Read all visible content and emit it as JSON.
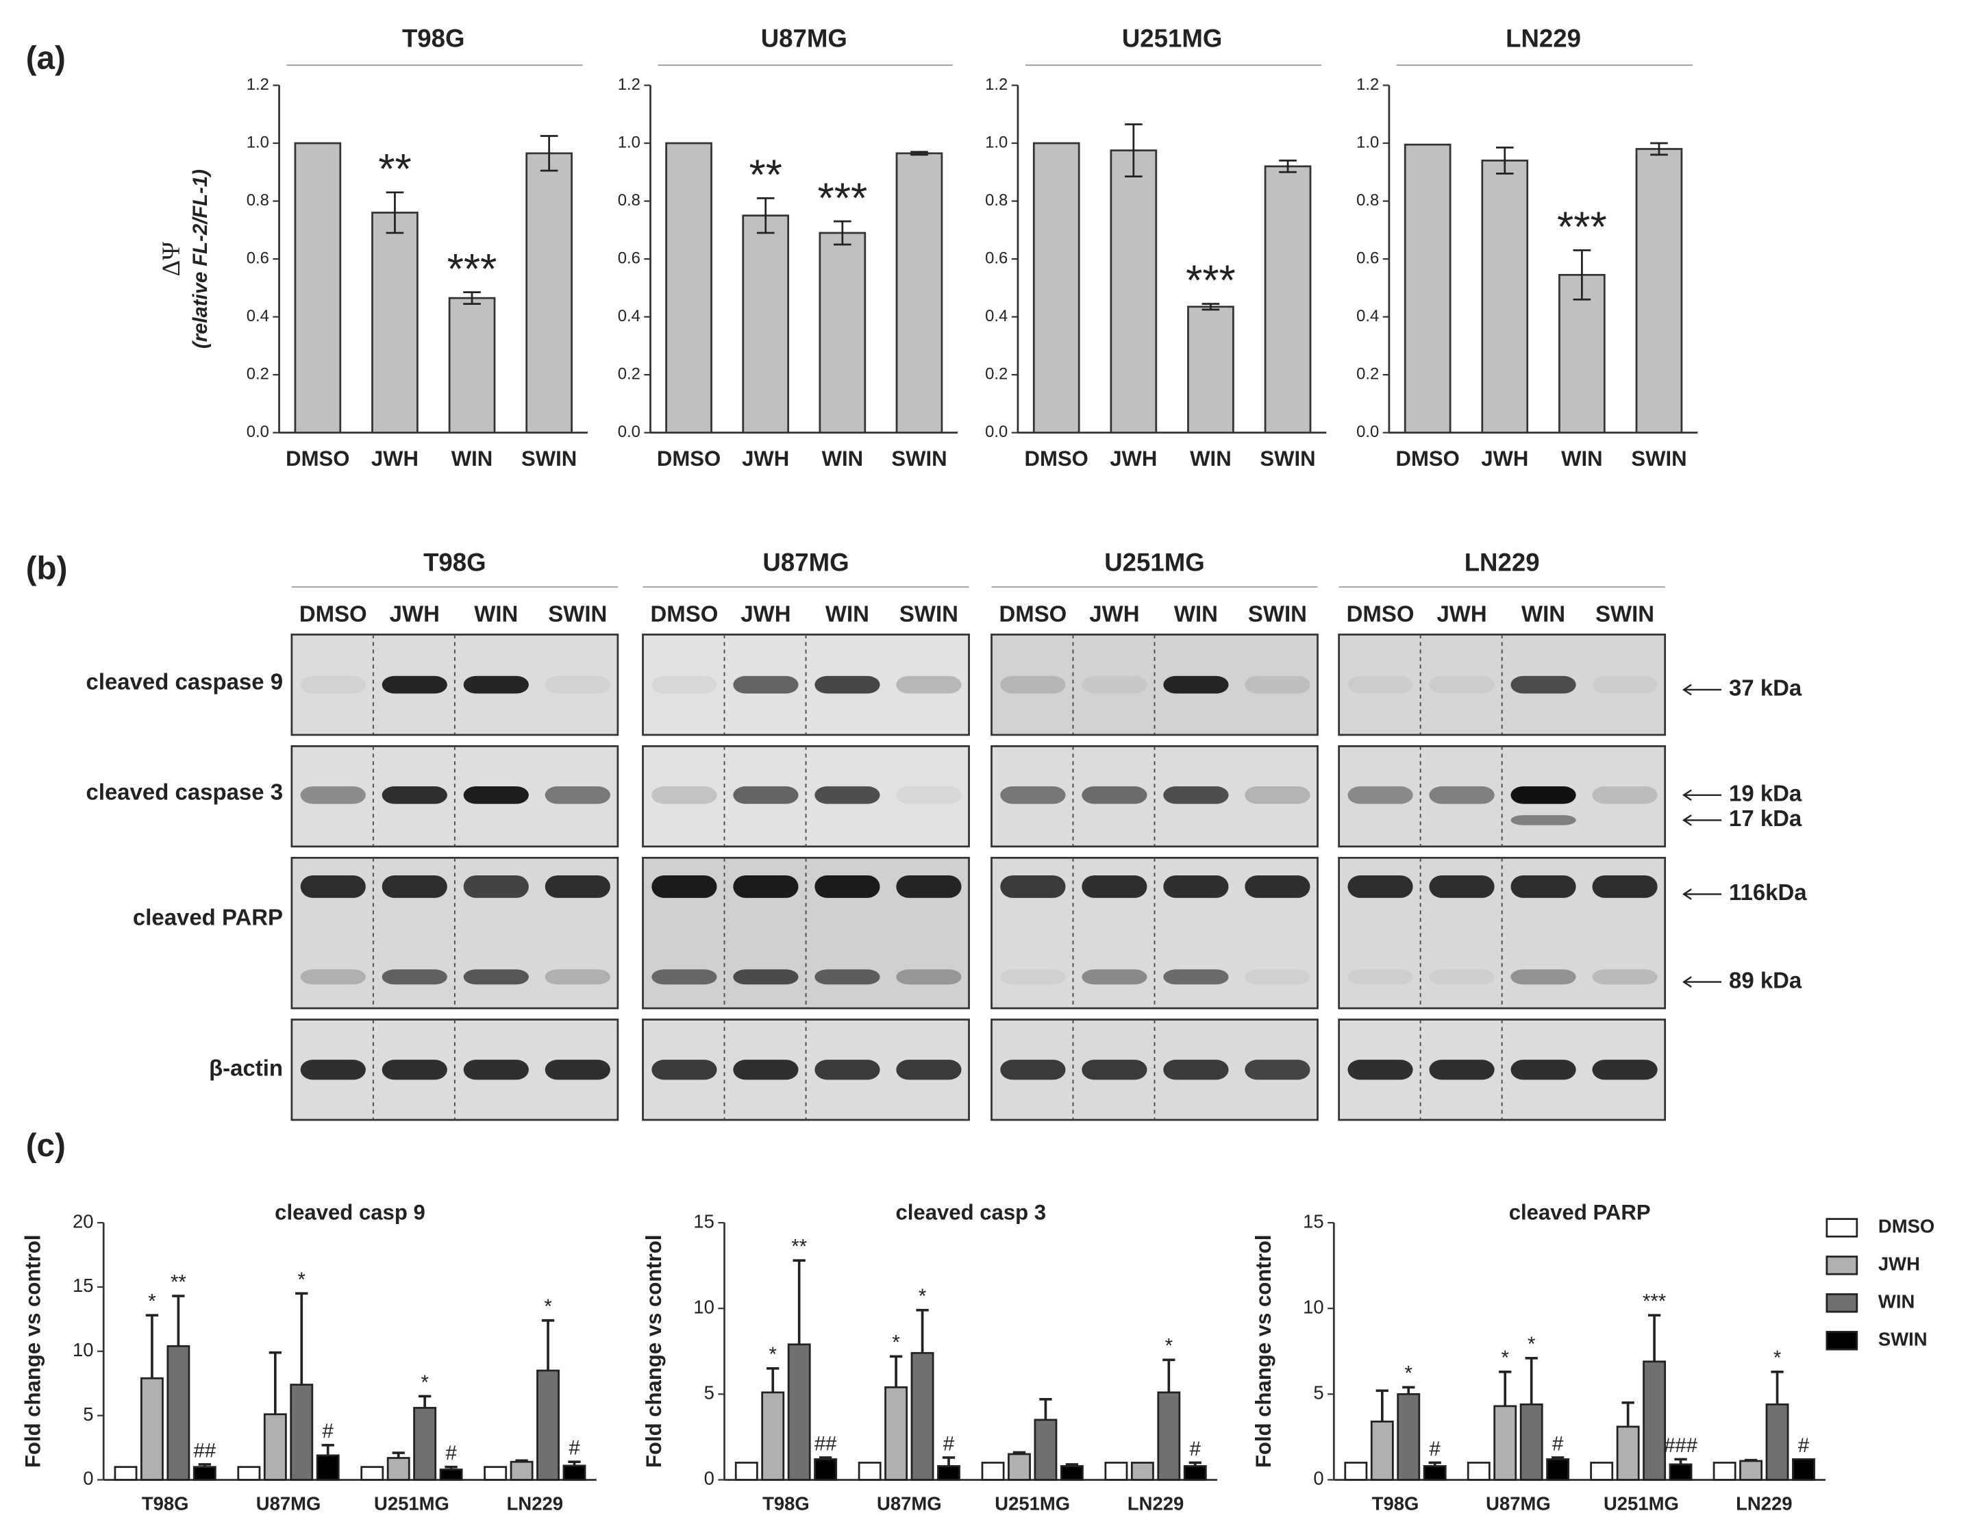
{
  "panel_labels": [
    "(a)",
    "(b)",
    "(c)"
  ],
  "chart_data": [
    {
      "type": "bar",
      "title": "T98G",
      "ylabel": "ΔΨ",
      "ylabel_note": "(relative FL-2/FL-1)",
      "categories": [
        "DMSO",
        "JWH",
        "WIN",
        "SWIN"
      ],
      "values": [
        1.0,
        0.76,
        0.465,
        0.965
      ],
      "errors": [
        null,
        0.07,
        0.02,
        0.06
      ],
      "annotations": [
        null,
        "**",
        "***",
        null
      ],
      "color": "#c0c0c0",
      "ylim": [
        0,
        1.2
      ],
      "yticks": [
        {
          "value": 0,
          "label": "0.0"
        },
        0.2,
        0.4,
        0.6,
        0.8,
        {
          "value": 1,
          "label": "1.0"
        },
        1.2
      ]
    },
    {
      "type": "bar",
      "title": "U87MG",
      "categories": [
        "DMSO",
        "JWH",
        "WIN",
        "SWIN"
      ],
      "values": [
        1.0,
        0.75,
        0.69,
        0.965
      ],
      "errors": [
        null,
        0.06,
        0.04,
        0.005
      ],
      "annotations": [
        null,
        "**",
        "***",
        null
      ],
      "color": "#c0c0c0",
      "ylim": [
        0,
        1.2
      ],
      "yticks": [
        {
          "value": 0,
          "label": "0.0"
        },
        0.2,
        0.4,
        0.6,
        0.8,
        {
          "value": 1,
          "label": "1.0"
        },
        1.2
      ]
    },
    {
      "type": "bar",
      "title": "U251MG",
      "categories": [
        "DMSO",
        "JWH",
        "WIN",
        "SWIN"
      ],
      "values": [
        1.0,
        0.975,
        0.435,
        0.92
      ],
      "errors": [
        null,
        0.09,
        0.01,
        0.02
      ],
      "annotations": [
        null,
        null,
        "***",
        null
      ],
      "color": "#c0c0c0",
      "ylim": [
        0,
        1.2
      ],
      "yticks": [
        {
          "value": 0,
          "label": "0.0"
        },
        0.2,
        0.4,
        0.6,
        0.8,
        {
          "value": 1,
          "label": "1.0"
        },
        1.2
      ]
    },
    {
      "type": "bar",
      "title": "LN229",
      "categories": [
        "DMSO",
        "JWH",
        "WIN",
        "SWIN"
      ],
      "values": [
        0.995,
        0.94,
        0.545,
        0.98
      ],
      "errors": [
        null,
        0.045,
        0.085,
        0.02
      ],
      "annotations": [
        null,
        null,
        "***",
        null
      ],
      "color": "#c0c0c0",
      "ylim": [
        0,
        1.2
      ],
      "yticks": [
        {
          "value": 0,
          "label": "0.0"
        },
        0.2,
        0.4,
        0.6,
        0.8,
        {
          "value": 1,
          "label": "1.0"
        },
        1.2
      ]
    },
    {
      "type": "grouped_bar",
      "title": "cleaved casp 9",
      "ylabel": "Fold change vs control",
      "categories": [
        "T98G",
        "U87MG",
        "U251MG",
        "LN229"
      ],
      "series": [
        {
          "name": "DMSO",
          "color": "#ffffff",
          "values": [
            1,
            1,
            1,
            1
          ],
          "errors": [
            null,
            null,
            null,
            null
          ],
          "annotations": [
            null,
            null,
            null,
            null
          ]
        },
        {
          "name": "JWH",
          "color": "#b0b0b0",
          "values": [
            7.9,
            5.1,
            1.7,
            1.4
          ],
          "errors": [
            4.9,
            4.8,
            0.4,
            0.1
          ],
          "annotations": [
            "*",
            null,
            null,
            null
          ]
        },
        {
          "name": "WIN",
          "color": "#707070",
          "values": [
            10.4,
            7.4,
            5.6,
            8.5
          ],
          "errors": [
            3.9,
            7.1,
            0.9,
            3.9
          ],
          "annotations": [
            "**",
            "*",
            "*",
            "*"
          ]
        },
        {
          "name": "SWIN",
          "color": "#000000",
          "values": [
            1.0,
            1.9,
            0.8,
            1.1
          ],
          "errors": [
            0.2,
            0.8,
            0.2,
            0.3
          ],
          "annotations": [
            "##",
            "#",
            "#",
            "#"
          ]
        }
      ],
      "ylim": [
        0,
        20
      ],
      "yticks": [
        0,
        5,
        10,
        15,
        20
      ]
    },
    {
      "type": "grouped_bar",
      "title": "cleaved casp 3",
      "ylabel": "Fold change vs control",
      "categories": [
        "T98G",
        "U87MG",
        "U251MG",
        "LN229"
      ],
      "series": [
        {
          "name": "DMSO",
          "color": "#ffffff",
          "values": [
            1,
            1,
            1,
            1
          ],
          "errors": [
            null,
            null,
            null,
            null
          ],
          "annotations": [
            null,
            null,
            null,
            null
          ]
        },
        {
          "name": "JWH",
          "color": "#b0b0b0",
          "values": [
            5.1,
            5.4,
            1.5,
            1.0
          ],
          "errors": [
            1.4,
            1.8,
            0.1,
            null
          ],
          "annotations": [
            "*",
            "*",
            null,
            null
          ]
        },
        {
          "name": "WIN",
          "color": "#707070",
          "values": [
            7.9,
            7.4,
            3.5,
            5.1
          ],
          "errors": [
            4.9,
            2.5,
            1.2,
            1.9
          ],
          "annotations": [
            "**",
            "*",
            null,
            "*"
          ]
        },
        {
          "name": "SWIN",
          "color": "#000000",
          "values": [
            1.2,
            0.8,
            0.8,
            0.8
          ],
          "errors": [
            0.1,
            0.5,
            0.1,
            0.2
          ],
          "annotations": [
            "##",
            "#",
            null,
            "#"
          ]
        }
      ],
      "ylim": [
        0,
        15
      ],
      "yticks": [
        0,
        5,
        10,
        15
      ]
    },
    {
      "type": "grouped_bar",
      "title": "cleaved PARP",
      "ylabel": "Fold change vs control",
      "legend": "right",
      "categories": [
        "T98G",
        "U87MG",
        "U251MG",
        "LN229"
      ],
      "series": [
        {
          "name": "DMSO",
          "color": "#ffffff",
          "values": [
            1,
            1,
            1,
            1
          ],
          "errors": [
            null,
            null,
            null,
            null
          ],
          "annotations": [
            null,
            null,
            null,
            null
          ]
        },
        {
          "name": "JWH",
          "color": "#b0b0b0",
          "values": [
            3.4,
            4.3,
            3.1,
            1.1
          ],
          "errors": [
            1.8,
            2.0,
            1.4,
            0.05
          ],
          "annotations": [
            null,
            "*",
            null,
            null
          ]
        },
        {
          "name": "WIN",
          "color": "#707070",
          "values": [
            5.0,
            4.4,
            6.9,
            4.4
          ],
          "errors": [
            0.4,
            2.7,
            2.7,
            1.9
          ],
          "annotations": [
            "*",
            "*",
            "***",
            "*"
          ]
        },
        {
          "name": "SWIN",
          "color": "#000000",
          "values": [
            0.8,
            1.2,
            0.9,
            1.2
          ],
          "errors": [
            0.2,
            0.1,
            0.3,
            null
          ],
          "annotations": [
            "#",
            "#",
            "###",
            "#"
          ]
        }
      ],
      "ylim": [
        0,
        15
      ],
      "yticks": [
        0,
        5,
        10,
        15
      ]
    }
  ],
  "blot": {
    "cell_lines": [
      "T98G",
      "U87MG",
      "U251MG",
      "LN229"
    ],
    "lanes": [
      "DMSO",
      "JWH",
      "WIN",
      "SWIN"
    ],
    "rows": [
      "cleaved caspase 9",
      "cleaved caspase 3",
      "cleaved PARP",
      "β-actin"
    ],
    "markers": [
      "37 kDa",
      "19 kDa",
      "17 kDa",
      "116kDa",
      "89 kDa"
    ]
  }
}
